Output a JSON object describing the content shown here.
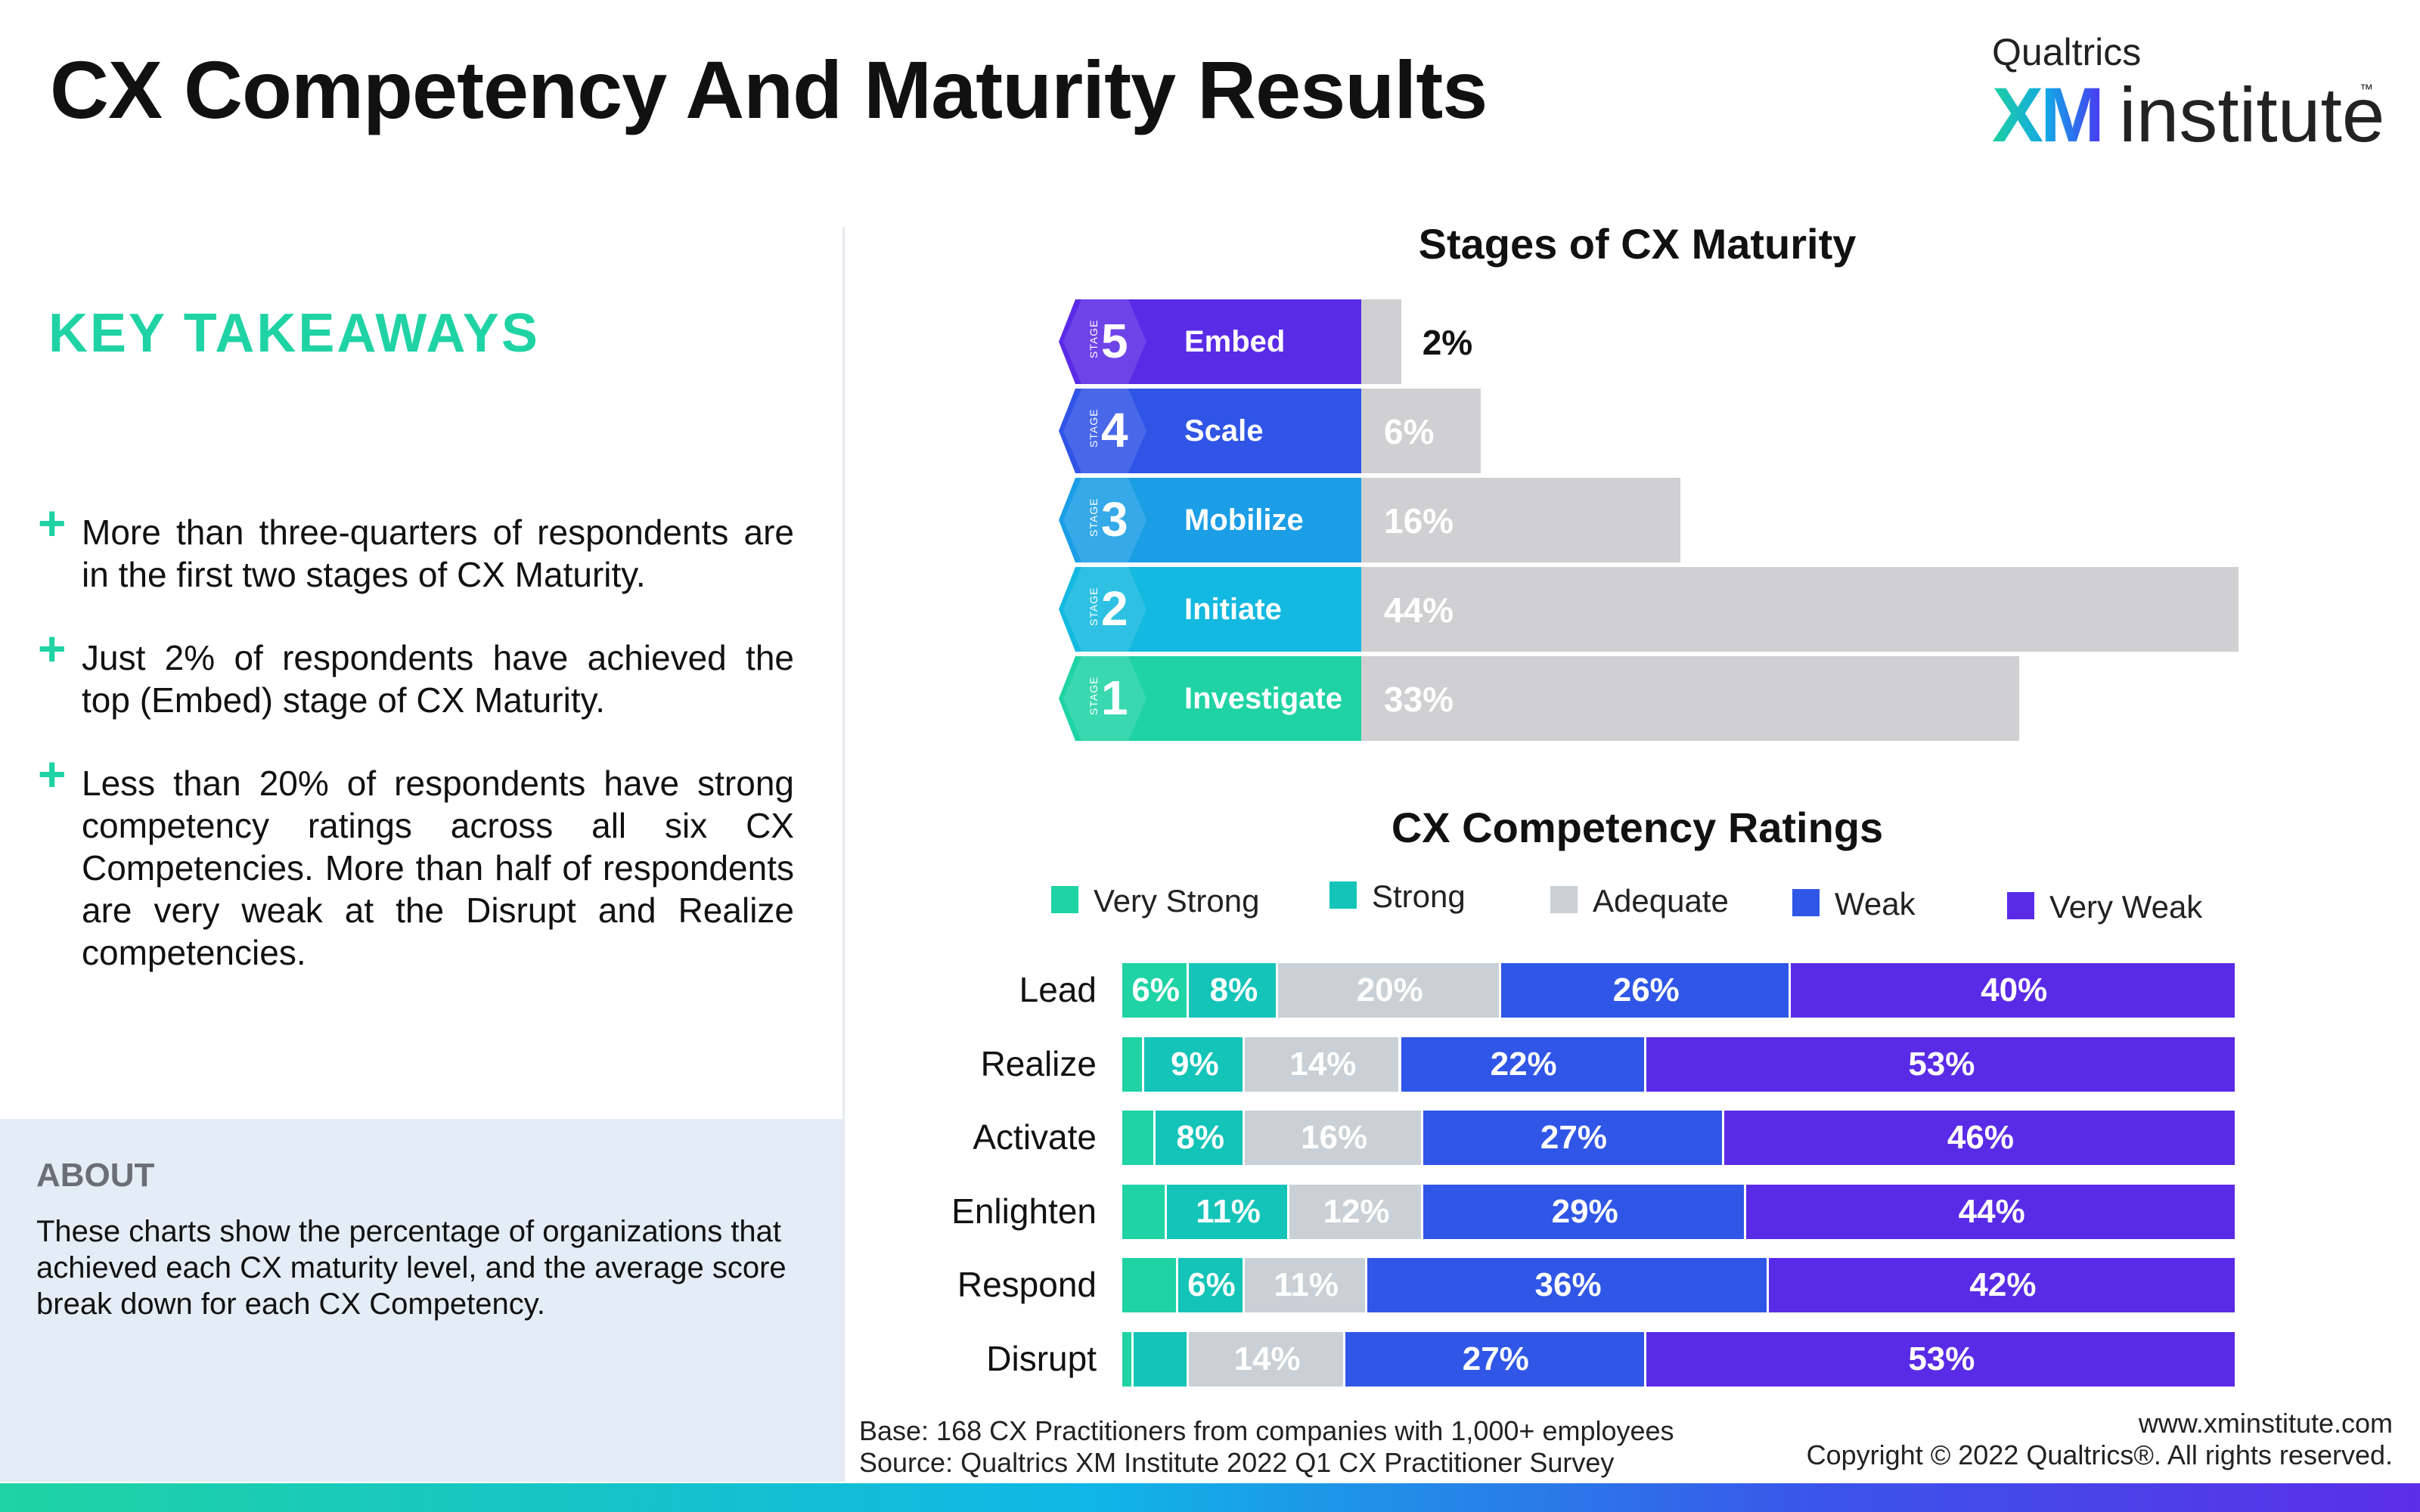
{
  "title": "CX Competency And Maturity Results",
  "brand": {
    "top": "Qualtrics",
    "xm": "XM",
    "institute": "institute",
    "tm": "™"
  },
  "takeaways": {
    "heading": "KEY TAKEAWAYS",
    "items": [
      "More than three-quarters of respondents are in the first two stages of CX Maturity.",
      "Just 2% of respondents have achieved the top (Embed) stage of CX Maturity.",
      "Less than 20% of respondents have strong competency ratings across all six CX Competencies. More than half of respondents are very weak at the Disrupt and Realize competencies."
    ]
  },
  "about": {
    "title": "ABOUT",
    "text": "These charts show the percentage of organizations that achieved each CX maturity level, and the average score break down for each CX Competency."
  },
  "footer": {
    "base": "Base: 168 CX Practitioners from companies with 1,000+ employees",
    "source": "Source: Qualtrics XM Institute 2022 Q1 CX Practitioner Survey",
    "website": "www.xminstitute.com",
    "copyright": "Copyright © 2022 Qualtrics®. All rights reserved."
  },
  "chart_data": [
    {
      "type": "bar",
      "title": "Stages of CX Maturity",
      "stage_tag": "STAGE",
      "categories": [
        "Embed",
        "Scale",
        "Mobilize",
        "Initiate",
        "Investigate"
      ],
      "stage_numbers": [
        "5",
        "4",
        "3",
        "2",
        "1"
      ],
      "values": [
        2,
        6,
        16,
        44,
        33
      ],
      "value_labels": [
        "2%",
        "6%",
        "16%",
        "44%",
        "33%"
      ],
      "xlim": [
        0,
        44
      ],
      "colors": {
        "stages": [
          "#5a2be6",
          "#2f54e6",
          "#1b9ee6",
          "#13b9e0",
          "#1fd3a4"
        ],
        "bar": "#d0d0d2"
      }
    },
    {
      "type": "bar",
      "stacked": true,
      "title": "CX Competency Ratings",
      "legend": "top",
      "categories": [
        "Lead",
        "Realize",
        "Activate",
        "Enlighten",
        "Respond",
        "Disrupt"
      ],
      "series": [
        {
          "name": "Very Strong",
          "color": "#1fd3a4",
          "values": [
            6,
            2,
            3,
            4,
            5,
            1
          ],
          "labels": [
            "6%",
            "",
            "",
            "",
            "",
            ""
          ]
        },
        {
          "name": "Strong",
          "color": "#14c4b8",
          "values": [
            8,
            9,
            8,
            11,
            6,
            5
          ],
          "labels": [
            "8%",
            "9%",
            "8%",
            "11%",
            "6%",
            ""
          ]
        },
        {
          "name": "Adequate",
          "color": "#c9d0d6",
          "values": [
            20,
            14,
            16,
            12,
            11,
            14
          ],
          "labels": [
            "20%",
            "14%",
            "16%",
            "12%",
            "11%",
            "14%"
          ]
        },
        {
          "name": "Weak",
          "color": "#2f56e6",
          "values": [
            26,
            22,
            27,
            29,
            36,
            27
          ],
          "labels": [
            "26%",
            "22%",
            "27%",
            "29%",
            "36%",
            "27%"
          ]
        },
        {
          "name": "Very Weak",
          "color": "#5a2be6",
          "values": [
            40,
            53,
            46,
            44,
            42,
            53
          ],
          "labels": [
            "40%",
            "53%",
            "46%",
            "44%",
            "42%",
            "53%"
          ]
        }
      ]
    }
  ]
}
